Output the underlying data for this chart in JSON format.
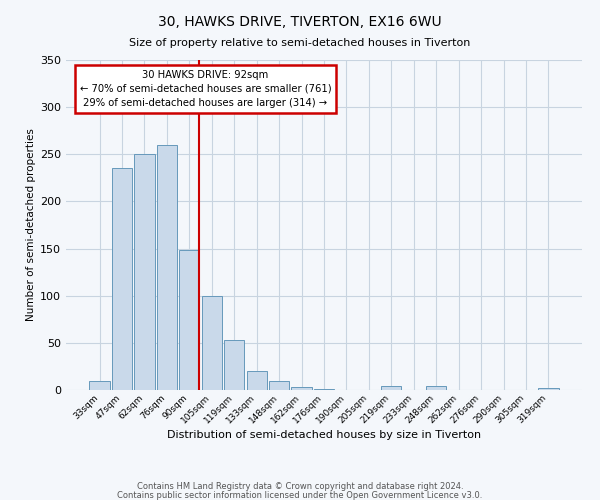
{
  "title": "30, HAWKS DRIVE, TIVERTON, EX16 6WU",
  "subtitle": "Size of property relative to semi-detached houses in Tiverton",
  "xlabel": "Distribution of semi-detached houses by size in Tiverton",
  "ylabel": "Number of semi-detached properties",
  "footnote1": "Contains HM Land Registry data © Crown copyright and database right 2024.",
  "footnote2": "Contains public sector information licensed under the Open Government Licence v3.0.",
  "bar_labels": [
    "33sqm",
    "47sqm",
    "62sqm",
    "76sqm",
    "90sqm",
    "105sqm",
    "119sqm",
    "133sqm",
    "148sqm",
    "162sqm",
    "176sqm",
    "190sqm",
    "205sqm",
    "219sqm",
    "233sqm",
    "248sqm",
    "262sqm",
    "276sqm",
    "290sqm",
    "305sqm",
    "319sqm"
  ],
  "bar_values": [
    10,
    235,
    250,
    260,
    148,
    100,
    53,
    20,
    10,
    3,
    1,
    0,
    0,
    4,
    0,
    4,
    0,
    0,
    0,
    0,
    2
  ],
  "bar_color": "#c9d9ea",
  "bar_edge_color": "#6699bb",
  "subject_line_idx": 4,
  "subject_line_label": "30 HAWKS DRIVE: 92sqm",
  "smaller_pct": "70%",
  "smaller_count": 761,
  "larger_pct": "29%",
  "larger_count": 314,
  "annotation_box_edge": "#cc0000",
  "subject_line_color": "#cc0000",
  "ylim": [
    0,
    350
  ],
  "yticks": [
    0,
    50,
    100,
    150,
    200,
    250,
    300,
    350
  ],
  "background_color": "#f4f7fb",
  "grid_color": "#c8d4e0"
}
